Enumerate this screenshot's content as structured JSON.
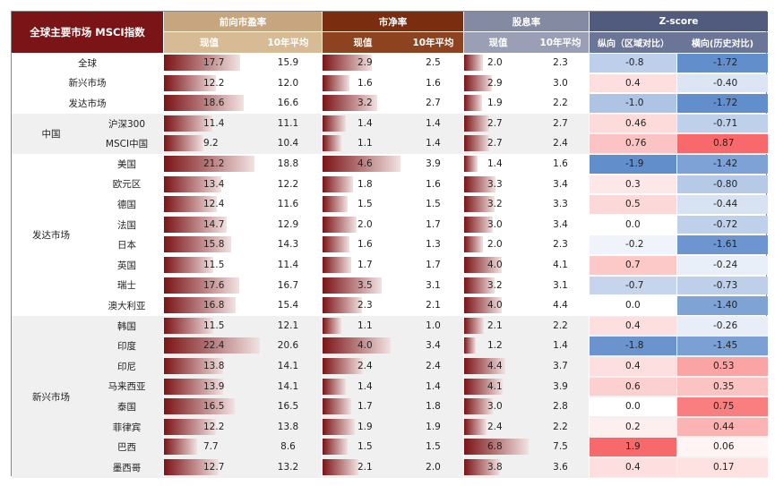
{
  "header": {
    "title": "全球主要市场 MSCI指数",
    "metrics": [
      {
        "label": "前向市盈率",
        "sub": [
          "现值",
          "10年平均"
        ]
      },
      {
        "label": "市净率",
        "sub": [
          "现值",
          "10年平均"
        ]
      },
      {
        "label": "股息率",
        "sub": [
          "现值",
          "10年平均"
        ]
      },
      {
        "label": "Z-score",
        "sub": [
          "纵向（区域对比）",
          "横向(历史对比)"
        ]
      }
    ]
  },
  "colors": {
    "title_bg": "#7b1416",
    "pe_header": "#c7a67f",
    "pe_sub": "#d7bb95",
    "pb_header": "#7a2e0f",
    "pb_sub": "#8e4320",
    "dy_header": "#858aa3",
    "dy_sub": "#9a9fb5",
    "z_header": "#505b7e",
    "z_sub": "#6a7598",
    "bar": "#7b1416"
  },
  "groups": [
    {
      "label": "中国",
      "start": 3,
      "count": 2
    },
    {
      "label": "发达市场",
      "start": 5,
      "count": 8
    },
    {
      "label": "新兴市场",
      "start": 13,
      "count": 8
    }
  ],
  "rows": [
    {
      "name": "全球",
      "pe": 17.7,
      "pe_avg": "15.9",
      "pb": 2.9,
      "pb_avg": "2.5",
      "dy": 2.0,
      "dy_avg": "2.3",
      "z1": "-0.8",
      "z2": "-1.72",
      "shaded": false
    },
    {
      "name": "新兴市场",
      "pe": 12.2,
      "pe_avg": "12.0",
      "pb": 1.6,
      "pb_avg": "1.6",
      "dy": 2.9,
      "dy_avg": "3.0",
      "z1": "0.4",
      "z2": "-0.40",
      "shaded": false
    },
    {
      "name": "发达市场",
      "pe": 18.6,
      "pe_avg": "16.6",
      "pb": 3.2,
      "pb_avg": "2.7",
      "dy": 1.9,
      "dy_avg": "2.2",
      "z1": "-1.0",
      "z2": "-1.72",
      "shaded": false
    },
    {
      "name": "沪深300",
      "pe": 11.4,
      "pe_avg": "11.1",
      "pb": 1.4,
      "pb_avg": "1.4",
      "dy": 2.7,
      "dy_avg": "2.7",
      "z1": "0.46",
      "z2": "-0.71",
      "shaded": true
    },
    {
      "name": "MSCI中国",
      "pe": 9.2,
      "pe_avg": "10.4",
      "pb": 1.1,
      "pb_avg": "1.4",
      "dy": 2.7,
      "dy_avg": "2.4",
      "z1": "0.76",
      "z2": "0.87",
      "shaded": true
    },
    {
      "name": "美国",
      "pe": 21.2,
      "pe_avg": "18.8",
      "pb": 4.6,
      "pb_avg": "3.9",
      "dy": 1.4,
      "dy_avg": "1.6",
      "z1": "-1.9",
      "z2": "-1.42",
      "shaded": false
    },
    {
      "name": "欧元区",
      "pe": 13.4,
      "pe_avg": "12.2",
      "pb": 1.8,
      "pb_avg": "1.6",
      "dy": 3.3,
      "dy_avg": "3.4",
      "z1": "0.3",
      "z2": "-0.80",
      "shaded": false
    },
    {
      "name": "德国",
      "pe": 12.4,
      "pe_avg": "11.6",
      "pb": 1.5,
      "pb_avg": "1.5",
      "dy": 3.2,
      "dy_avg": "3.3",
      "z1": "0.5",
      "z2": "-0.44",
      "shaded": false
    },
    {
      "name": "法国",
      "pe": 14.7,
      "pe_avg": "12.9",
      "pb": 2.0,
      "pb_avg": "1.7",
      "dy": 3.0,
      "dy_avg": "3.4",
      "z1": "0.0",
      "z2": "-0.72",
      "shaded": false
    },
    {
      "name": "日本",
      "pe": 15.8,
      "pe_avg": "14.3",
      "pb": 1.6,
      "pb_avg": "1.3",
      "dy": 2.0,
      "dy_avg": "2.3",
      "z1": "-0.2",
      "z2": "-1.61",
      "shaded": false
    },
    {
      "name": "英国",
      "pe": 11.5,
      "pe_avg": "11.4",
      "pb": 1.7,
      "pb_avg": "1.7",
      "dy": 4.0,
      "dy_avg": "4.1",
      "z1": "0.7",
      "z2": "-0.24",
      "shaded": false
    },
    {
      "name": "瑞士",
      "pe": 17.6,
      "pe_avg": "16.7",
      "pb": 3.5,
      "pb_avg": "3.1",
      "dy": 3.2,
      "dy_avg": "3.1",
      "z1": "-0.7",
      "z2": "-0.73",
      "shaded": false
    },
    {
      "name": "澳大利亚",
      "pe": 16.8,
      "pe_avg": "15.4",
      "pb": 2.3,
      "pb_avg": "2.1",
      "dy": 4.0,
      "dy_avg": "4.4",
      "z1": "0.0",
      "z2": "-1.40",
      "shaded": false
    },
    {
      "name": "韩国",
      "pe": 11.5,
      "pe_avg": "12.1",
      "pb": 1.1,
      "pb_avg": "1.0",
      "dy": 2.1,
      "dy_avg": "2.2",
      "z1": "0.4",
      "z2": "-0.26",
      "shaded": true
    },
    {
      "name": "印度",
      "pe": 22.4,
      "pe_avg": "20.6",
      "pb": 4.0,
      "pb_avg": "3.4",
      "dy": 1.2,
      "dy_avg": "1.4",
      "z1": "-1.8",
      "z2": "-1.45",
      "shaded": true
    },
    {
      "name": "印尼",
      "pe": 13.8,
      "pe_avg": "14.1",
      "pb": 2.4,
      "pb_avg": "2.4",
      "dy": 4.4,
      "dy_avg": "3.7",
      "z1": "0.4",
      "z2": "0.53",
      "shaded": true
    },
    {
      "name": "马来西亚",
      "pe": 13.9,
      "pe_avg": "14.1",
      "pb": 1.4,
      "pb_avg": "1.4",
      "dy": 4.1,
      "dy_avg": "3.9",
      "z1": "0.6",
      "z2": "0.35",
      "shaded": true
    },
    {
      "name": "泰国",
      "pe": 16.5,
      "pe_avg": "16.5",
      "pb": 1.7,
      "pb_avg": "1.8",
      "dy": 3.0,
      "dy_avg": "2.8",
      "z1": "0.0",
      "z2": "0.75",
      "shaded": true
    },
    {
      "name": "菲律宾",
      "pe": 12.2,
      "pe_avg": "13.8",
      "pb": 1.9,
      "pb_avg": "1.9",
      "dy": 2.4,
      "dy_avg": "2.2",
      "z1": "0.2",
      "z2": "0.44",
      "shaded": true
    },
    {
      "name": "巴西",
      "pe": 7.7,
      "pe_avg": "8.6",
      "pb": 1.5,
      "pb_avg": "1.5",
      "dy": 6.8,
      "dy_avg": "7.5",
      "z1": "1.9",
      "z2": "0.06",
      "shaded": true
    },
    {
      "name": "墨西哥",
      "pe": 12.7,
      "pe_avg": "13.2",
      "pb": 2.1,
      "pb_avg": "2.0",
      "dy": 3.8,
      "dy_avg": "3.6",
      "z1": "0.4",
      "z2": "0.17",
      "shaded": true
    }
  ]
}
